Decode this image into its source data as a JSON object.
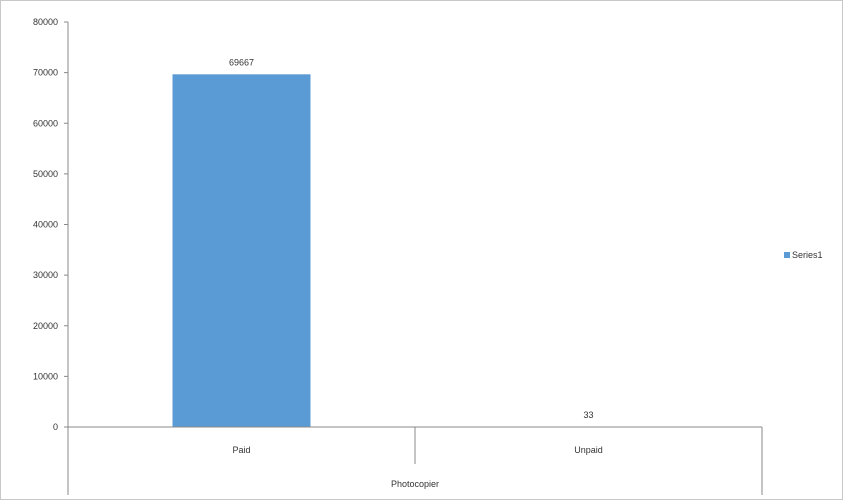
{
  "chart_data": {
    "type": "bar",
    "categories": [
      "Paid",
      "Unpaid"
    ],
    "group_label": "Photocopier",
    "series": [
      {
        "name": "Series1",
        "values": [
          69667,
          33
        ]
      }
    ],
    "data_labels": [
      "69667",
      "33"
    ],
    "ylim": [
      0,
      80000
    ],
    "yticks": [
      "0",
      "10000",
      "20000",
      "30000",
      "40000",
      "50000",
      "60000",
      "70000",
      "80000"
    ],
    "title": "",
    "xlabel": "",
    "ylabel": "",
    "legend_position": "right",
    "grid": false,
    "colors": {
      "bar": "#5b9bd5",
      "axis": "#888888",
      "border": "#c8c8c8"
    }
  }
}
